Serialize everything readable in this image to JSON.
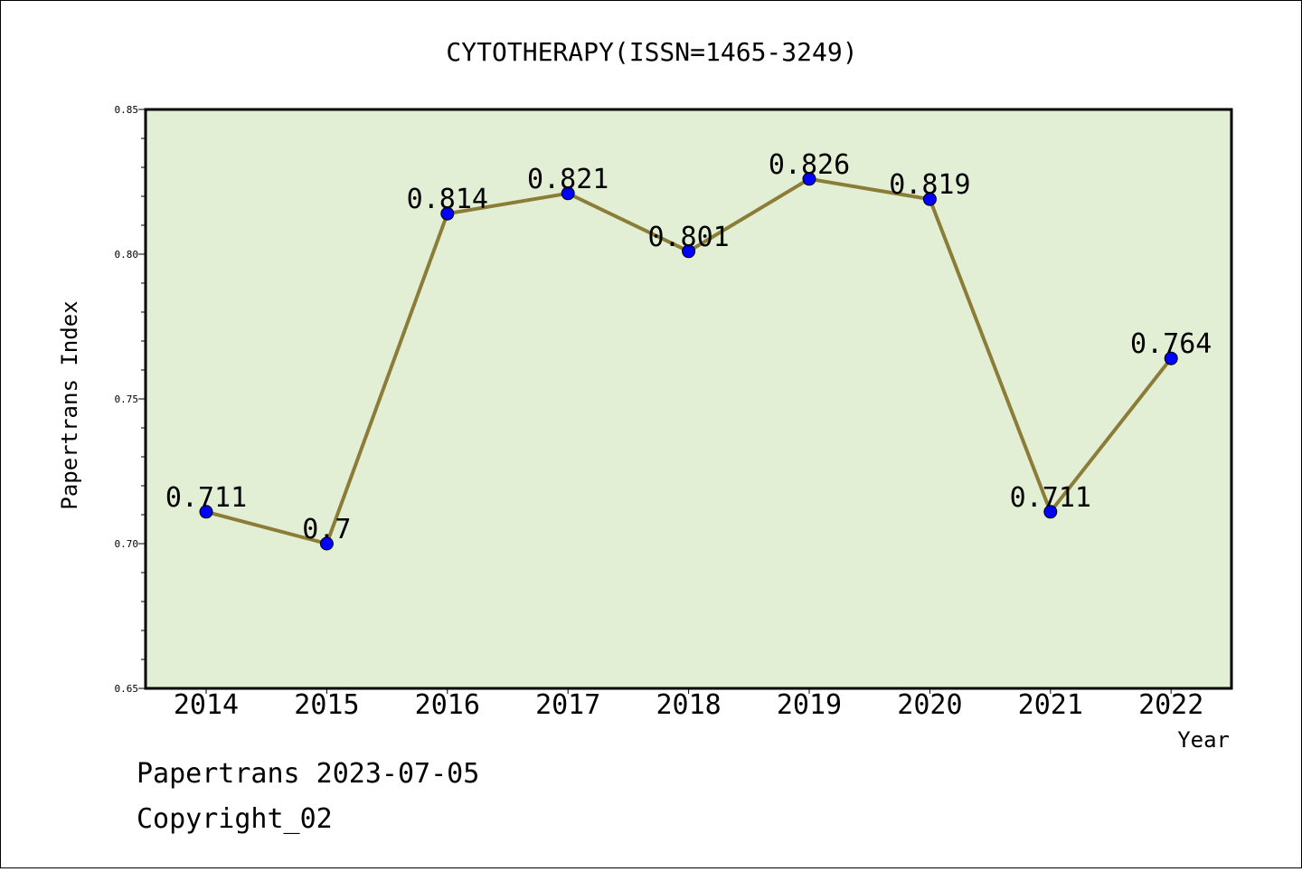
{
  "chart_data": {
    "type": "line",
    "title": "CYTOTHERAPY(ISSN=1465-3249)",
    "xlabel": "Year",
    "ylabel": "Papertrans Index",
    "categories": [
      "2014",
      "2015",
      "2016",
      "2017",
      "2018",
      "2019",
      "2020",
      "2021",
      "2022"
    ],
    "series": [
      {
        "values": [
          0.711,
          0.7,
          0.814,
          0.821,
          0.801,
          0.826,
          0.819,
          0.711,
          0.764
        ]
      }
    ],
    "data_labels": [
      "0.711",
      "0.7",
      "0.814",
      "0.821",
      "0.801",
      "0.826",
      "0.819",
      "0.711",
      "0.764"
    ],
    "ylim": [
      0.65,
      0.85
    ],
    "yticks": [
      "0.65",
      "0.70",
      "0.75",
      "0.80",
      "0.85"
    ],
    "grid": false,
    "colors": {
      "plot_background": "#e2efd5",
      "line": "#8b7d37",
      "marker": "#0000ff"
    }
  },
  "footer": {
    "line1": "Papertrans 2023-07-05",
    "line2": "Copyright_02"
  }
}
